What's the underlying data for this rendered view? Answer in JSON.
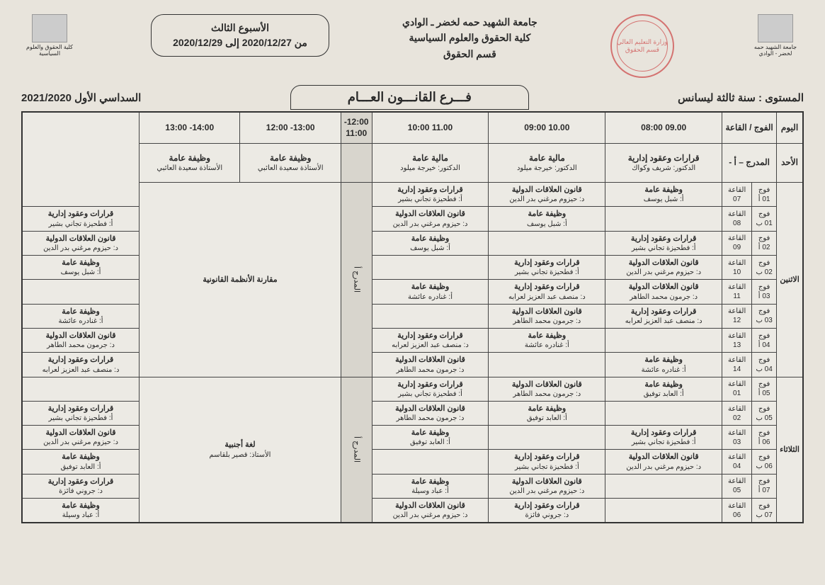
{
  "header": {
    "university": "جامعة الشهيد حمه لخضر ـ الوادي",
    "faculty": "كلية الحقوق والعلوم السياسية",
    "department": "قسم الحقوق",
    "week_title": "الأسبوع الثالث",
    "week_dates": "من 2020/12/27 إلى 2020/12/29",
    "logo_right": "جامعة الشهيد حمه لخضر - الوادي",
    "logo_left": "كلية الحقوق والعلوم السياسية",
    "stamp": "وزارة التعليم العالي\nقسم الحقوق"
  },
  "titles": {
    "level": "المستوى : سنة ثالثة ليسانس",
    "branch": "فـــرع  القانـــون العـــام",
    "semester": "السداسي الأول  2021/2020"
  },
  "columns": {
    "day": "اليوم",
    "group_room": "الفوج / القاعة",
    "t1": "09.00    08:00",
    "t2": "10.00    09:00",
    "t3": "11.00    10:00",
    "t4": "12:00- 11:00",
    "t5": "13:00- 12:00",
    "t6": "14:00- 13:00"
  },
  "days": {
    "sunday": "الأحد",
    "monday": "الاثنين",
    "tuesday": "الثلاثاء"
  },
  "amphi": "المدرج – أ -",
  "amphi_vert": "المدرج أ",
  "sunday_lecture": {
    "c1_subj": "قرارات وعقود إدارية",
    "c1_teach": "الدكتور: شريف وكواك",
    "c2_subj": "مالية عامة",
    "c2_teach": "الدكتور: خيرجة ميلود",
    "c3_subj": "مالية عامة",
    "c3_teach": "الدكتور: خيرجة ميلود",
    "c5_subj": "وظيفة عامة",
    "c5_teach": "الأستاذة سعيدة العائبي",
    "c6_subj": "وظيفة عامة",
    "c6_teach": "الأستاذة سعيدة العائبي"
  },
  "monday_merge": "مقارنة الأنظمة القانونية",
  "tuesday_merge_subj": "لغة أجنبية",
  "tuesday_merge_teach": "الأستاذ: قصير بلقاسم",
  "subjects": {
    "wadhifa": "وظيفة عامة",
    "qararat": "قرارات وعقود إدارية",
    "alakat": "قانون العلاقات الدولية"
  },
  "teachers": {
    "chebel": "أ: شبل يوسف",
    "hizoum": "د: حيزوم مرغني بدر الدين",
    "fathiza": "أ: فطحيزة تجاني بشير",
    "ghnadra": "أ: غنادره عائشة",
    "djarmoun": "د: جرمون محمد الطاهر",
    "monsef": "د: منصف عبد العزيز لعرابه",
    "abid": "أ: العابد توفيق",
    "abbad": "أ: عباد وسيلة",
    "djrouni": "د: جروني فائزة"
  },
  "groups": {
    "g01a": "فوج 01 أ",
    "g01b": "فوج 01 ب",
    "g02a": "فوج 02 أ",
    "g02b": "فوج 02 ب",
    "g03a": "فوج 03 أ",
    "g03b": "فوج 03 ب",
    "g04a": "فوج 04 أ",
    "g04b": "فوج 04 ب",
    "g05a": "فوج 05 أ",
    "g05b": "فوج 05 ب",
    "g06a": "فوج 06 أ",
    "g06b": "فوج 06 ب",
    "g07a": "فوج 07 أ",
    "g07b": "فوج 07 ب"
  },
  "rooms": {
    "r01": "القاعة 01",
    "r02": "القاعة 02",
    "r03": "القاعة 03",
    "r04": "القاعة 04",
    "r05": "القاعة 05",
    "r06": "القاعة 06",
    "r07": "القاعة 07",
    "r08": "القاعة 08",
    "r09": "القاعة 09",
    "r10": "القاعة 10",
    "r11": "القاعة 11",
    "r12": "القاعة 12",
    "r13": "القاعة 13",
    "r14": "القاعة 14"
  },
  "colors": {
    "background": "#e8e4dc",
    "border": "#333333",
    "shaded": "#d8d5cd",
    "stamp": "#c44444"
  }
}
